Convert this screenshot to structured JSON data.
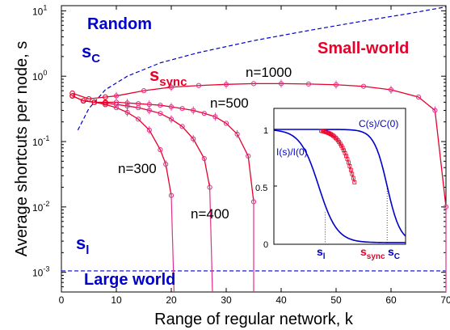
{
  "chart_data": {
    "type": "line",
    "xlabel": "Range of regular network, k",
    "ylabel": "Average shortcuts per node, s",
    "xlim": [
      0,
      70
    ],
    "ylim": [
      0.0005,
      12
    ],
    "yscale": "log",
    "xticks": [
      "0",
      "10",
      "20",
      "30",
      "40",
      "50",
      "60",
      "70"
    ],
    "yticks": [
      {
        "value": 10,
        "base": "10",
        "exp": "1"
      },
      {
        "value": 1,
        "base": "10",
        "exp": "0"
      },
      {
        "value": 0.1,
        "base": "10",
        "exp": "-1"
      },
      {
        "value": 0.01,
        "base": "10",
        "exp": "-2"
      },
      {
        "value": 0.001,
        "base": "10",
        "exp": "-3"
      }
    ],
    "regions": {
      "random": "Random",
      "small_world": "Small-world",
      "large_world": "Large world"
    },
    "symbols": {
      "s_c": {
        "base": "s",
        "sub": "C"
      },
      "s_sync": {
        "base": "s",
        "sub": "sync"
      },
      "s_l": {
        "base": "s",
        "sub": "l"
      }
    },
    "colors": {
      "sync": "#e8002a",
      "bound": "#0000cc",
      "marker": "#e0308a"
    },
    "series": [
      {
        "name": "n=300",
        "kmax": 20.5,
        "points": [
          [
            2,
            0.5
          ],
          [
            4,
            0.42
          ],
          [
            6,
            0.4
          ],
          [
            8,
            0.37
          ],
          [
            10,
            0.33
          ],
          [
            12,
            0.28
          ],
          [
            14,
            0.22
          ],
          [
            16,
            0.15
          ],
          [
            18,
            0.075
          ],
          [
            19,
            0.045
          ],
          [
            20,
            0.015
          ]
        ]
      },
      {
        "name": "n=400",
        "kmax": 27.5,
        "points": [
          [
            2,
            0.5
          ],
          [
            4,
            0.42
          ],
          [
            6,
            0.4
          ],
          [
            8,
            0.39
          ],
          [
            10,
            0.37
          ],
          [
            12,
            0.35
          ],
          [
            14,
            0.33
          ],
          [
            16,
            0.3
          ],
          [
            18,
            0.27
          ],
          [
            20,
            0.22
          ],
          [
            22,
            0.17
          ],
          [
            24,
            0.11
          ],
          [
            26,
            0.055
          ],
          [
            27,
            0.02
          ]
        ]
      },
      {
        "name": "n=500",
        "kmax": 35,
        "points": [
          [
            2,
            0.5
          ],
          [
            4,
            0.42
          ],
          [
            6,
            0.4
          ],
          [
            8,
            0.4
          ],
          [
            10,
            0.4
          ],
          [
            12,
            0.39
          ],
          [
            14,
            0.38
          ],
          [
            16,
            0.37
          ],
          [
            18,
            0.36
          ],
          [
            20,
            0.34
          ],
          [
            22,
            0.32
          ],
          [
            24,
            0.3
          ],
          [
            26,
            0.27
          ],
          [
            28,
            0.24
          ],
          [
            30,
            0.19
          ],
          [
            32,
            0.13
          ],
          [
            34,
            0.06
          ],
          [
            35,
            0.012
          ]
        ]
      },
      {
        "name": "n=1000",
        "kmax": 70,
        "points": [
          [
            2,
            0.55
          ],
          [
            5,
            0.45
          ],
          [
            8,
            0.48
          ],
          [
            10,
            0.5
          ],
          [
            15,
            0.6
          ],
          [
            20,
            0.68
          ],
          [
            25,
            0.72
          ],
          [
            30,
            0.75
          ],
          [
            35,
            0.77
          ],
          [
            40,
            0.77
          ],
          [
            45,
            0.76
          ],
          [
            50,
            0.74
          ],
          [
            55,
            0.7
          ],
          [
            60,
            0.62
          ],
          [
            65,
            0.48
          ],
          [
            68,
            0.3
          ],
          [
            70,
            0.01
          ]
        ]
      }
    ],
    "s_c_curve": [
      [
        3,
        0.15
      ],
      [
        5,
        0.32
      ],
      [
        8,
        0.62
      ],
      [
        12,
        1.0
      ],
      [
        18,
        1.6
      ],
      [
        25,
        2.3
      ],
      [
        35,
        3.5
      ],
      [
        45,
        5.0
      ],
      [
        55,
        7.0
      ],
      [
        63,
        9.0
      ],
      [
        70,
        11.5
      ]
    ],
    "s_l_value": 0.00105,
    "inset": {
      "curves": {
        "c_label": "C(s)/C(0)",
        "l_label": "I(s)/I(0)"
      },
      "yticks": [
        "0",
        "0.5",
        "1"
      ],
      "markers": {
        "s_l": {
          "base": "s",
          "sub": "l"
        },
        "s_sync": {
          "base": "s",
          "sub": "sync"
        },
        "s_c": {
          "base": "s",
          "sub": "C"
        }
      }
    }
  }
}
